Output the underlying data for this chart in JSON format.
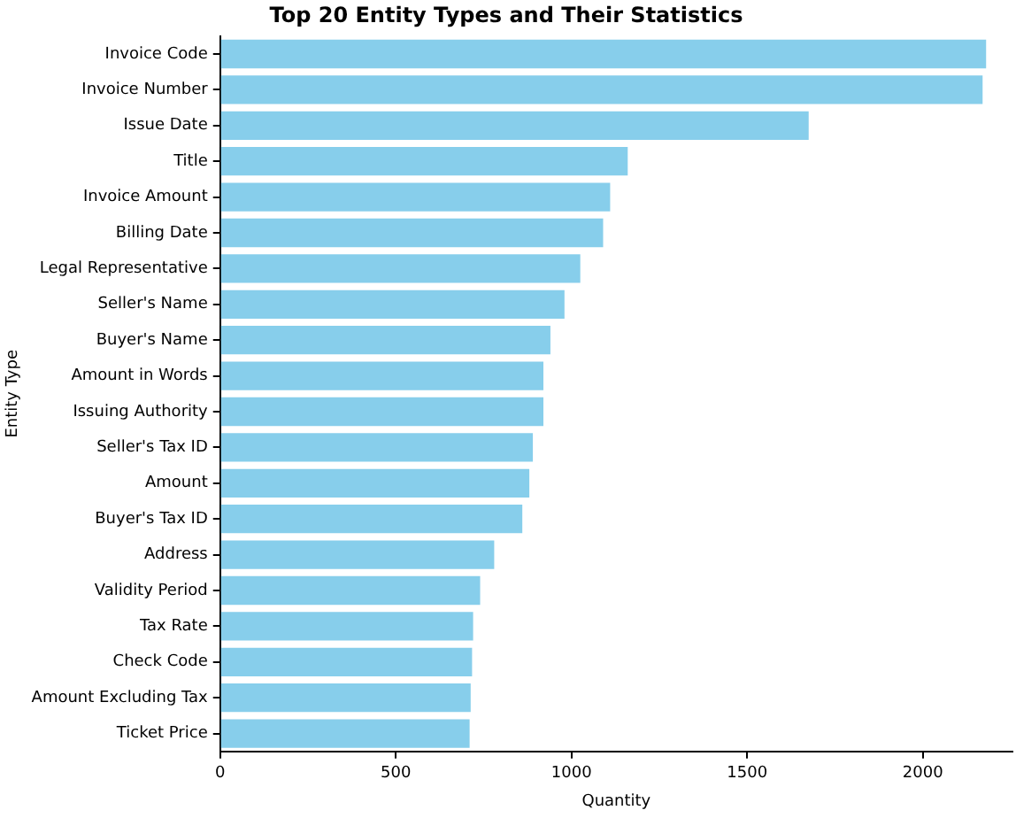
{
  "chart_data": {
    "type": "bar",
    "orientation": "horizontal",
    "title": "Top 20 Entity Types and Their Statistics",
    "xlabel": "Quantity",
    "ylabel": "Entity Type",
    "categories": [
      "Invoice Code",
      "Invoice Number",
      "Issue Date",
      "Title",
      "Invoice Amount",
      "Billing Date",
      "Legal Representative",
      "Seller's Name",
      "Buyer's Name",
      "Amount in Words",
      "Issuing Authority",
      "Seller's Tax ID",
      "Amount",
      "Buyer's Tax ID",
      "Address",
      "Validity Period",
      "Tax Rate",
      "Check Code",
      "Amount Excluding Tax",
      "Ticket Price"
    ],
    "values": [
      2180,
      2170,
      1675,
      1160,
      1110,
      1090,
      1025,
      980,
      940,
      920,
      920,
      890,
      880,
      860,
      780,
      740,
      720,
      717,
      713,
      710
    ],
    "color": "#87ceeb",
    "xlim": [
      0,
      2255
    ],
    "xticks": [
      0,
      500,
      1000,
      1500,
      2000
    ],
    "grid": false,
    "legend": false
  }
}
